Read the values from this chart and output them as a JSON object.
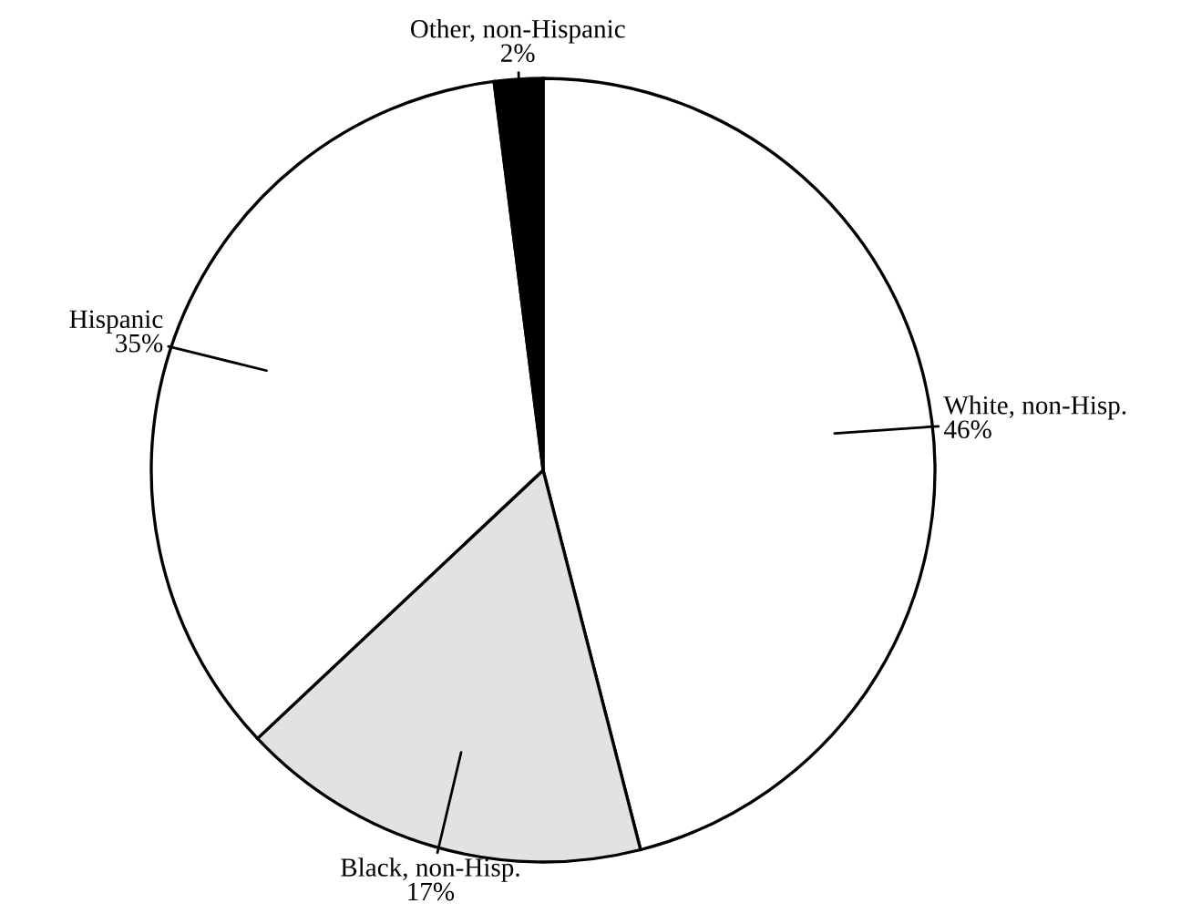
{
  "chart_data": {
    "type": "pie",
    "categories": [
      "White, non-Hisp.",
      "Black, non-Hisp.",
      "Hispanic",
      "Other, non-Hispanic"
    ],
    "values": [
      46,
      17,
      35,
      2
    ],
    "value_labels": [
      "46%",
      "17%",
      "35%",
      "2%"
    ],
    "colors": [
      "#ffffff",
      "#e2e2e2",
      "#ffffff",
      "#000000"
    ],
    "legend": false
  }
}
